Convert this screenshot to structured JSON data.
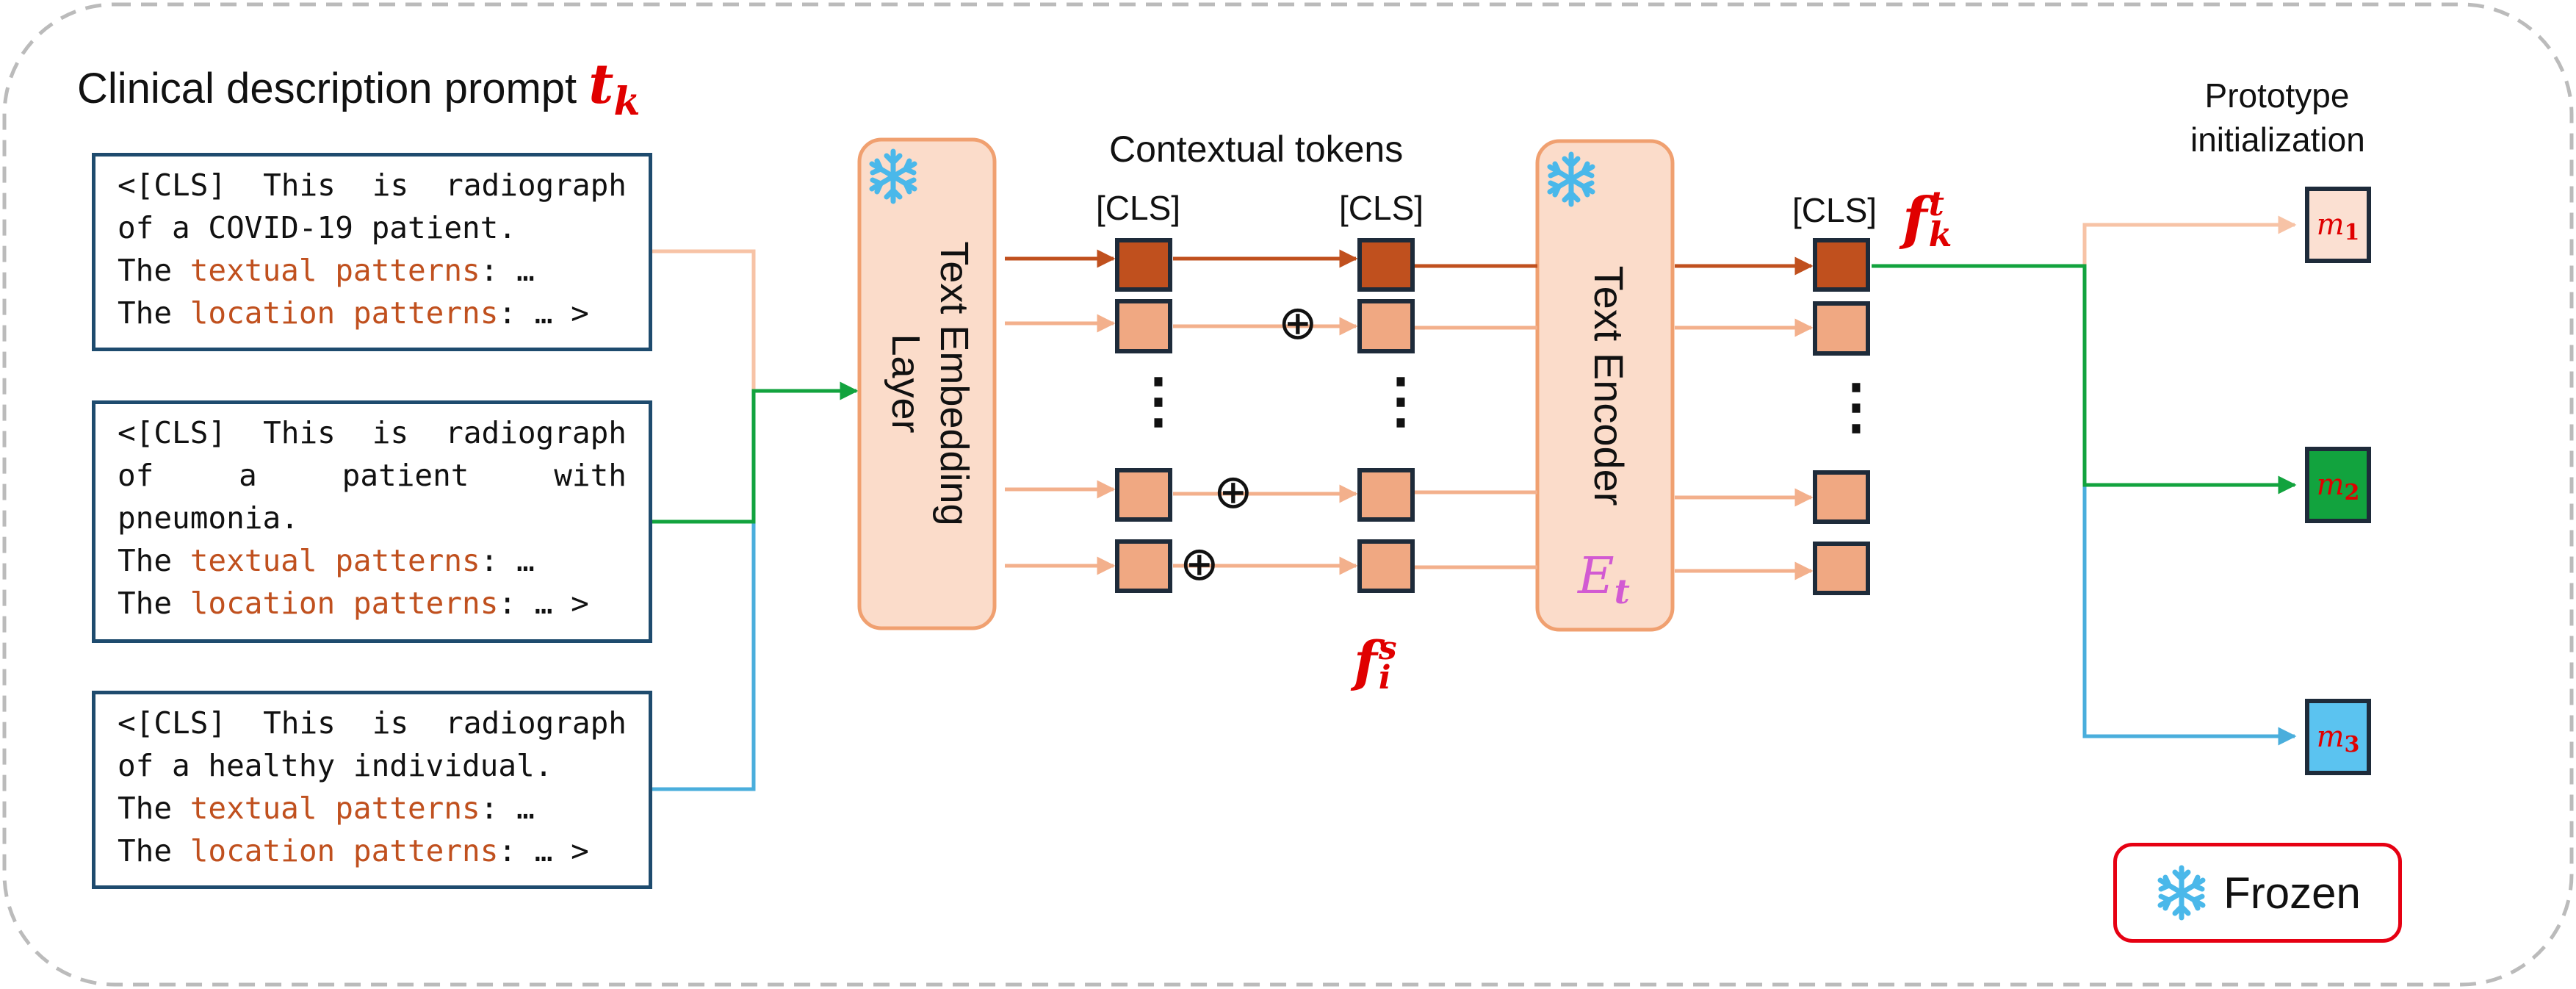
{
  "title": {
    "text": "Clinical description prompt ",
    "symbol": "t",
    "symbol_sub": "k"
  },
  "prompts": [
    {
      "lines": [
        {
          "parts": [
            {
              "t": "<[CLS] This is radiograph",
              "hl": false
            }
          ],
          "justify": true
        },
        {
          "parts": [
            {
              "t": "of a COVID-19 patient.",
              "hl": false
            }
          ],
          "justify": false
        },
        {
          "parts": [
            {
              "t": "The ",
              "hl": false
            },
            {
              "t": "textual patterns",
              "hl": true
            },
            {
              "t": ": …",
              "hl": false
            }
          ],
          "justify": false
        },
        {
          "parts": [
            {
              "t": "The ",
              "hl": false
            },
            {
              "t": "location patterns",
              "hl": true
            },
            {
              "t": ": … >",
              "hl": false
            }
          ],
          "justify": false
        }
      ]
    },
    {
      "lines": [
        {
          "parts": [
            {
              "t": "<[CLS] This is radiograph",
              "hl": false
            }
          ],
          "justify": true
        },
        {
          "parts": [
            {
              "t": "of a patient with",
              "hl": false
            }
          ],
          "justify": true
        },
        {
          "parts": [
            {
              "t": "pneumonia.",
              "hl": false
            }
          ],
          "justify": false
        },
        {
          "parts": [
            {
              "t": "The ",
              "hl": false
            },
            {
              "t": "textual patterns",
              "hl": true
            },
            {
              "t": ": …",
              "hl": false
            }
          ],
          "justify": false
        },
        {
          "parts": [
            {
              "t": "The ",
              "hl": false
            },
            {
              "t": "location patterns",
              "hl": true
            },
            {
              "t": ": … >",
              "hl": false
            }
          ],
          "justify": false
        }
      ]
    },
    {
      "lines": [
        {
          "parts": [
            {
              "t": "<[CLS] This is radiograph",
              "hl": false
            }
          ],
          "justify": true
        },
        {
          "parts": [
            {
              "t": "of a healthy individual.",
              "hl": false
            }
          ],
          "justify": false
        },
        {
          "parts": [
            {
              "t": "The ",
              "hl": false
            },
            {
              "t": "textual patterns",
              "hl": true
            },
            {
              "t": ": …",
              "hl": false
            }
          ],
          "justify": false
        },
        {
          "parts": [
            {
              "t": "The ",
              "hl": false
            },
            {
              "t": "location patterns",
              "hl": true
            },
            {
              "t": ": … >",
              "hl": false
            }
          ],
          "justify": false
        }
      ]
    }
  ],
  "embedding_layer": {
    "label": "Text Embedding Layer",
    "line1": "Text Embedding",
    "line2": "Layer",
    "icon": "snowflake-icon"
  },
  "contextual_tokens": {
    "label": "Contextual tokens",
    "cls_left": "[CLS]",
    "cls_right": "[CLS]",
    "sum_symbol": "⊕",
    "ellipsis": "⋮"
  },
  "fi_symbol": {
    "base": "f",
    "sup": "s",
    "sub": "i"
  },
  "encoder": {
    "label": "Text Encoder",
    "symbol": "E",
    "symbol_sub": "t",
    "icon": "snowflake-icon"
  },
  "encoder_output": {
    "cls": "[CLS]",
    "symbol": "f",
    "sup": "t",
    "sub": "k",
    "ellipsis": "⋮"
  },
  "prototype": {
    "heading_line1": "Prototype",
    "heading_line2": "initialization",
    "items": [
      {
        "symbol": "m",
        "sub": "1",
        "color": "#fbe0d2"
      },
      {
        "symbol": "m",
        "sub": "2",
        "color": "#12a33e"
      },
      {
        "symbol": "m",
        "sub": "3",
        "color": "#5bc3f0"
      }
    ]
  },
  "legend": {
    "label": "Frozen",
    "icon": "snowflake-icon"
  },
  "colors": {
    "dark_token": "#c0501e",
    "light_token": "#f0a882",
    "light_arrow": "#f3b08c",
    "peach_line": "#f7c3a6",
    "green_line": "#12a33e",
    "blue_line": "#4aaedc",
    "box_border": "#1e4b6e",
    "block_fill": "#fbdcca",
    "block_border": "#f0a070",
    "snowflake": "#4ab8ea",
    "highlight": "#c0501e",
    "math_red": "#e00000",
    "encoder_symbol": "#d25ad2"
  }
}
